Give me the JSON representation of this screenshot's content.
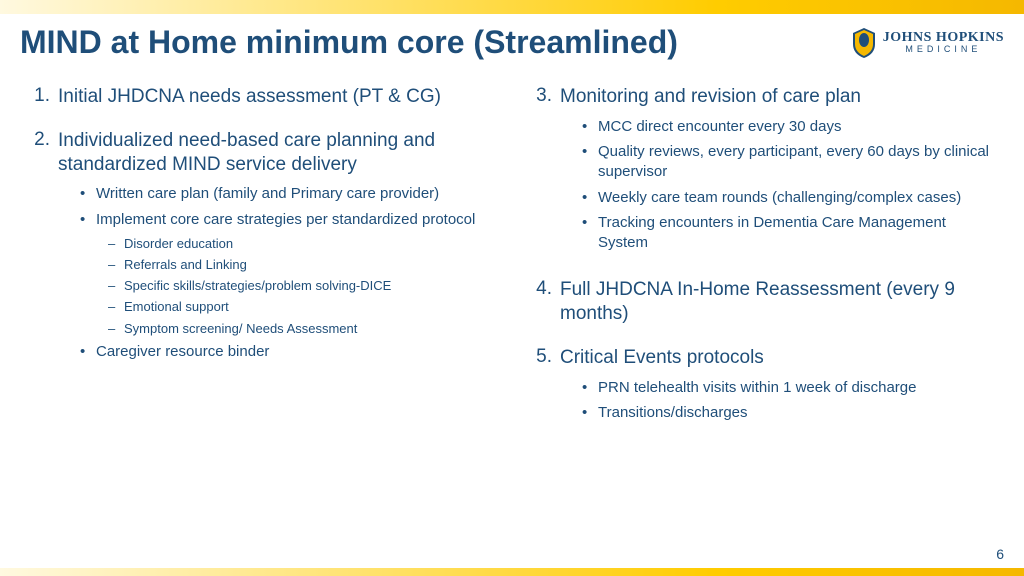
{
  "title": "MIND at Home minimum core (Streamlined)",
  "logo": {
    "main": "JOHNS HOPKINS",
    "sub": "MEDICINE"
  },
  "pageNumber": "6",
  "left": [
    {
      "num": "1.",
      "title": "Initial JHDCNA needs assessment (PT & CG)",
      "bullets": []
    },
    {
      "num": "2.",
      "title": "Individualized need-based care planning and standardized MIND service delivery",
      "bullets": [
        {
          "text": "Written care plan (family and Primary care provider)",
          "subs": []
        },
        {
          "text": "Implement core care strategies per standardized protocol",
          "subs": [
            "Disorder education",
            "Referrals and Linking",
            "Specific skills/strategies/problem solving-DICE",
            "Emotional support",
            "Symptom screening/ Needs Assessment"
          ]
        },
        {
          "text": "Caregiver resource binder",
          "subs": []
        }
      ]
    }
  ],
  "right": [
    {
      "num": "3.",
      "title": "Monitoring and revision of care plan",
      "bullets": [
        {
          "text": "MCC direct encounter every 30 days",
          "subs": []
        },
        {
          "text": "Quality reviews, every participant, every 60 days by clinical supervisor",
          "subs": []
        },
        {
          "text": "Weekly care team rounds (challenging/complex cases)",
          "subs": []
        },
        {
          "text": "Tracking encounters in Dementia Care Management System",
          "subs": []
        }
      ]
    },
    {
      "num": "4.",
      "title": "Full JHDCNA In-Home Reassessment (every 9 months)",
      "bullets": []
    },
    {
      "num": "5.",
      "title": "Critical Events protocols",
      "bullets": [
        {
          "text": "PRN telehealth visits within 1 week of discharge",
          "subs": []
        },
        {
          "text": "Transitions/discharges",
          "subs": []
        }
      ]
    }
  ]
}
